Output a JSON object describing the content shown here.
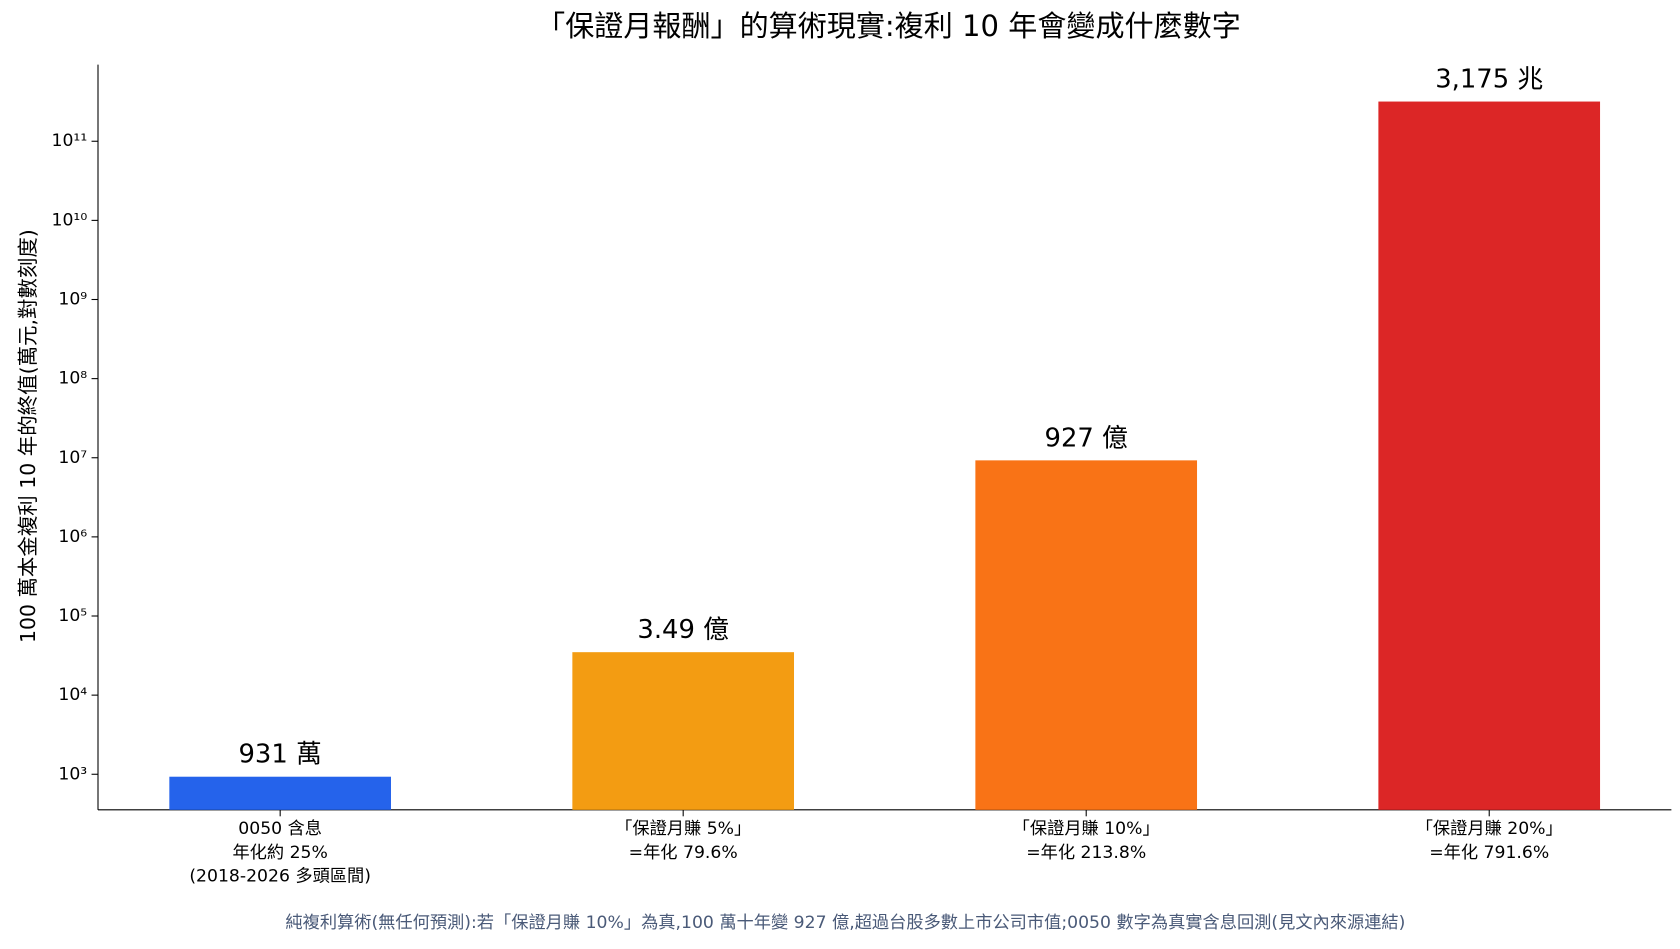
{
  "chart_data": {
    "type": "bar",
    "title": "「保證月報酬」的算術現實:複利 10 年會變成什麼數字",
    "ylabel": "100 萬本金複利 10 年的終值(萬元,對數刻度)",
    "footnote": "純複利算術(無任何預測):若「保證月賺 10%」為真,100 萬十年變 927 億,超過台股多數上市公司市值;0050 數字為真實含息回測(見文內來源連結)",
    "categories": [
      [
        "0050 含息",
        "年化約 25%",
        "(2018-2026 多頭區間)"
      ],
      [
        "「保證月賺 5%」",
        "=年化 79.6%"
      ],
      [
        "「保證月賺 10%」",
        "=年化 213.8%"
      ],
      [
        "「保證月賺 20%」",
        "=年化 791.6%"
      ]
    ],
    "values": [
      931,
      34900,
      9270000,
      317500000000
    ],
    "value_labels": [
      "931 萬",
      "3.49 億",
      "927 億",
      "3,175 兆"
    ],
    "colors": [
      "#2563eb",
      "#f39c12",
      "#f97316",
      "#dc2626"
    ],
    "log_scale": true,
    "ylim": [
      355,
      930000000000
    ],
    "yticks": [
      {
        "value": 1000,
        "label": "10³"
      },
      {
        "value": 10000,
        "label": "10⁴"
      },
      {
        "value": 100000,
        "label": "10⁵"
      },
      {
        "value": 1000000,
        "label": "10⁶"
      },
      {
        "value": 10000000,
        "label": "10⁷"
      },
      {
        "value": 100000000,
        "label": "10⁸"
      },
      {
        "value": 1000000000,
        "label": "10⁹"
      },
      {
        "value": 10000000000,
        "label": "10¹⁰"
      },
      {
        "value": 100000000000,
        "label": "10¹¹"
      }
    ]
  }
}
